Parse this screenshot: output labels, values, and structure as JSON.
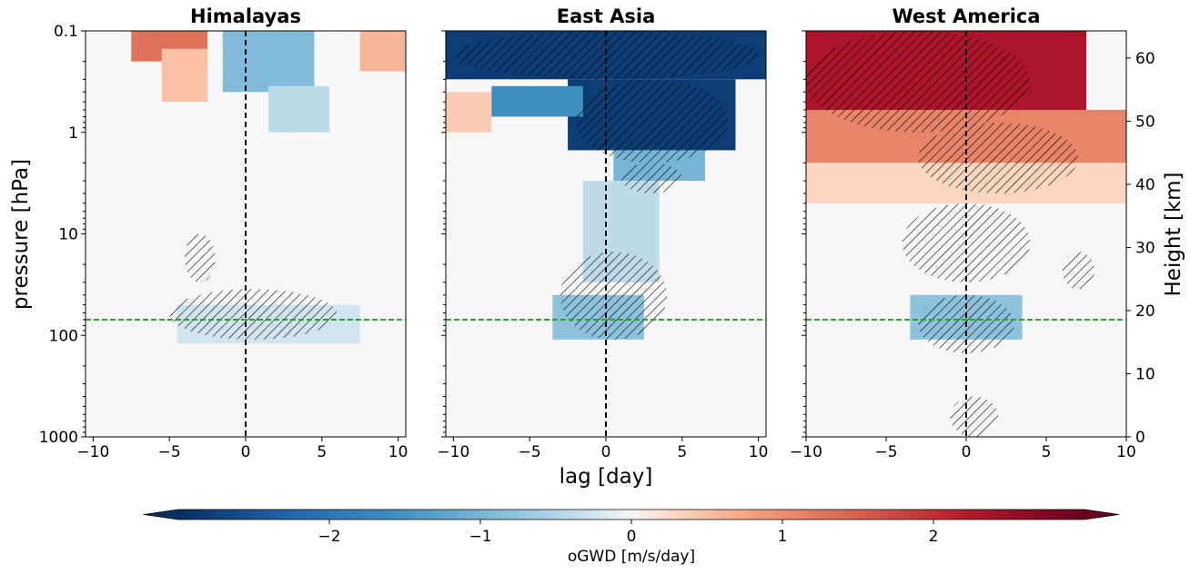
{
  "figure": {
    "shared_xlabel": "lag [day]",
    "left_ylabel": "pressure [hPa]",
    "right_ylabel": "Height [km]",
    "reference_line_color": "#2ca02c"
  },
  "chart_data": [
    {
      "type": "heatmap",
      "title": "Himalayas",
      "xlim": [
        -10.5,
        10.5
      ],
      "x_ticks": [
        -10,
        -5,
        0,
        5,
        10
      ],
      "x_tick_labels": [
        "−10",
        "−5",
        "0",
        "5",
        "10"
      ],
      "y_scale": "log",
      "ylim_hPa": [
        1000,
        0.1
      ],
      "y_ticks": [
        0.1,
        1,
        10,
        100,
        1000
      ],
      "y_tick_labels": [
        "0.1",
        "1",
        "10",
        "100",
        "1000"
      ],
      "vertical_reference_day": 0,
      "horizontal_reference_hPa": 70,
      "features": [
        {
          "lag": [
            -7,
            -3
          ],
          "p_hPa": [
            0.1,
            0.2
          ],
          "value": 1.3
        },
        {
          "lag": [
            -5,
            -3
          ],
          "p_hPa": [
            0.15,
            0.5
          ],
          "value": 0.5
        },
        {
          "lag": [
            -1,
            4
          ],
          "p_hPa": [
            0.1,
            0.4
          ],
          "value": -0.9
        },
        {
          "lag": [
            2,
            5
          ],
          "p_hPa": [
            0.35,
            1.0
          ],
          "value": -0.4
        },
        {
          "lag": [
            8,
            10
          ],
          "p_hPa": [
            0.1,
            0.25
          ],
          "value": 0.6
        },
        {
          "lag": [
            -4,
            7
          ],
          "p_hPa": [
            50,
            120
          ],
          "value": -0.25
        }
      ],
      "hatched_regions": [
        {
          "lag": [
            -4,
            -2
          ],
          "p_hPa": [
            10,
            30
          ]
        },
        {
          "lag": [
            -5,
            6
          ],
          "p_hPa": [
            35,
            110
          ]
        }
      ]
    },
    {
      "type": "heatmap",
      "title": "East Asia",
      "xlim": [
        -10.5,
        10.5
      ],
      "x_ticks": [
        -10,
        -5,
        0,
        5,
        10
      ],
      "x_tick_labels": [
        "−10",
        "−5",
        "0",
        "5",
        "10"
      ],
      "y_scale": "log",
      "ylim_hPa": [
        1000,
        0.1
      ],
      "vertical_reference_day": 0,
      "horizontal_reference_hPa": 70,
      "features": [
        {
          "lag": [
            -10,
            10
          ],
          "p_hPa": [
            0.1,
            0.3
          ],
          "value": -2.8
        },
        {
          "lag": [
            -2,
            8
          ],
          "p_hPa": [
            0.3,
            1.5
          ],
          "value": -2.8
        },
        {
          "lag": [
            -7,
            -2
          ],
          "p_hPa": [
            0.35,
            0.7
          ],
          "value": -1.6
        },
        {
          "lag": [
            1,
            6
          ],
          "p_hPa": [
            1.5,
            3
          ],
          "value": -1.0
        },
        {
          "lag": [
            -1,
            3
          ],
          "p_hPa": [
            3,
            30
          ],
          "value": -0.4
        },
        {
          "lag": [
            -3,
            2
          ],
          "p_hPa": [
            40,
            110
          ],
          "value": -0.8
        },
        {
          "lag": [
            -10,
            -8
          ],
          "p_hPa": [
            0.4,
            1
          ],
          "value": 0.4
        }
      ],
      "hatched_regions": [
        {
          "lag": [
            -10,
            10
          ],
          "p_hPa": [
            0.1,
            0.3
          ]
        },
        {
          "lag": [
            -2,
            8
          ],
          "p_hPa": [
            0.3,
            2
          ]
        },
        {
          "lag": [
            1,
            5
          ],
          "p_hPa": [
            2,
            4
          ]
        },
        {
          "lag": [
            -3,
            4
          ],
          "p_hPa": [
            15,
            110
          ]
        }
      ]
    },
    {
      "type": "heatmap",
      "title": "West America",
      "xlim": [
        -10,
        10
      ],
      "x_ticks": [
        -10,
        -5,
        0,
        5,
        10
      ],
      "x_tick_labels": [
        "−10",
        "−5",
        "0",
        "5",
        "10"
      ],
      "secondary_y_label": "Height [km]",
      "secondary_y_ticks": [
        0,
        10,
        20,
        30,
        40,
        50,
        60
      ],
      "secondary_y_tick_labels": [
        "0",
        "10",
        "20",
        "30",
        "40",
        "50",
        "60"
      ],
      "secondary_ylim_km": [
        0,
        64.3
      ],
      "vertical_reference_day": 0,
      "horizontal_reference_hPa": 70,
      "features": [
        {
          "lag": [
            -10,
            7
          ],
          "p_hPa": [
            0.1,
            0.8
          ],
          "value": 2.3
        },
        {
          "lag": [
            -10,
            10
          ],
          "p_hPa": [
            0.6,
            2
          ],
          "value": 1.1
        },
        {
          "lag": [
            -10,
            10
          ],
          "p_hPa": [
            2,
            5
          ],
          "value": 0.3
        },
        {
          "lag": [
            -3,
            3
          ],
          "p_hPa": [
            40,
            110
          ],
          "value": -0.8
        }
      ],
      "hatched_regions": [
        {
          "lag": [
            -10,
            4
          ],
          "p_hPa": [
            0.1,
            1
          ]
        },
        {
          "lag": [
            -3,
            7
          ],
          "p_hPa": [
            0.8,
            4
          ]
        },
        {
          "lag": [
            -4,
            4
          ],
          "p_hPa": [
            5,
            30
          ]
        },
        {
          "lag": [
            6,
            8
          ],
          "p_hPa": [
            15,
            35
          ]
        },
        {
          "lag": [
            -3,
            3
          ],
          "p_hPa": [
            40,
            150
          ]
        },
        {
          "lag": [
            -1,
            2
          ],
          "p_hPa": [
            400,
            1000
          ]
        }
      ]
    }
  ],
  "colorbar": {
    "label": "oGWD [m/s/day]",
    "range": [
      -3,
      3
    ],
    "ticks": [
      -2,
      -1,
      0,
      1,
      2
    ],
    "tick_labels": [
      "−2",
      "−1",
      "0",
      "1",
      "2"
    ],
    "colormap": "RdBu_r",
    "extend": "both"
  }
}
